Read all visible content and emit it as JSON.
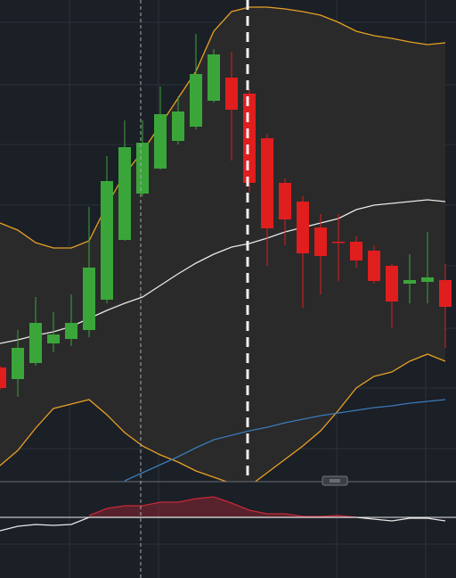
{
  "chart_data": [
    {
      "type": "candlestick",
      "categories": [
        null,
        null,
        null,
        null,
        null,
        null,
        null,
        null,
        null,
        null,
        null,
        null,
        null,
        null,
        null,
        null,
        null,
        null,
        null,
        null,
        null,
        null,
        null,
        null,
        null,
        null
      ],
      "open": [
        128,
        115,
        133,
        155,
        160,
        170,
        204,
        271,
        323,
        351,
        382,
        398,
        427,
        453,
        435,
        385,
        335,
        314,
        285,
        269,
        269,
        259,
        242,
        222,
        224,
        226
      ],
      "high": [
        130,
        170,
        207,
        190,
        210,
        308,
        365,
        405,
        405,
        443,
        432,
        502,
        485,
        482,
        440,
        390,
        340,
        320,
        300,
        300,
        275,
        265,
        244,
        255,
        280,
        244
      ],
      "low": [
        103,
        95,
        130,
        145,
        152,
        162,
        200,
        270,
        320,
        350,
        378,
        395,
        425,
        360,
        325,
        242,
        265,
        195,
        210,
        225,
        240,
        222,
        173,
        200,
        200,
        150
      ],
      "close": [
        105,
        150,
        178,
        165,
        178,
        240,
        337,
        375,
        380,
        412,
        415,
        457,
        479,
        417,
        335,
        284,
        294,
        256,
        253,
        268,
        248,
        225,
        202,
        226,
        229,
        196
      ],
      "up_color": "#3aa63a",
      "down_color": "#e01e1e",
      "ylim": [
        0,
        540
      ],
      "band_fill": "#2a2a2a",
      "series": [
        {
          "color": "#e8a024",
          "values": [
            290,
            282,
            268,
            262,
            262,
            270,
            310,
            345,
            370,
            400,
            430,
            460,
            505,
            527,
            532,
            532,
            530,
            527,
            523,
            515,
            505,
            500,
            497,
            493,
            490,
            492
          ]
        },
        {
          "color": "#e8e8e8",
          "values": [
            155,
            159,
            164,
            168,
            174,
            183,
            192,
            200,
            207,
            220,
            233,
            245,
            255,
            263,
            267,
            273,
            280,
            285,
            290,
            295,
            305,
            310,
            312,
            314,
            316,
            314
          ]
        },
        {
          "color": "#e8a024",
          "values": [
            18,
            35,
            60,
            82,
            87,
            92,
            75,
            55,
            40,
            30,
            22,
            12,
            5,
            -2,
            -5,
            10,
            25,
            40,
            57,
            80,
            105,
            118,
            123,
            135,
            143,
            135
          ]
        },
        {
          "color": "#3a7ab8",
          "values": [
            null,
            null,
            null,
            null,
            null,
            null,
            null,
            1,
            10,
            19,
            28,
            38,
            47,
            52,
            57,
            61,
            66,
            70,
            74,
            77,
            80,
            83,
            85,
            88,
            90,
            92
          ]
        }
      ]
    },
    {
      "type": "line",
      "ylim": [
        0,
        108
      ],
      "baseline": 68,
      "series": [
        {
          "color": "#c8283a",
          "fill": true,
          "values": [
            null,
            null,
            null,
            null,
            null,
            70,
            78,
            81,
            81,
            85,
            85,
            89,
            91,
            84,
            76,
            72,
            72,
            69,
            69,
            70,
            68,
            null,
            null,
            null,
            null,
            null
          ]
        },
        {
          "color": "#e8e8e8",
          "values": [
            53,
            58,
            60,
            59,
            60,
            68,
            68,
            68,
            68,
            68,
            68,
            68,
            68,
            68,
            68,
            68,
            68,
            68,
            68,
            68,
            68,
            66,
            64,
            67,
            67,
            64
          ]
        }
      ]
    }
  ]
}
